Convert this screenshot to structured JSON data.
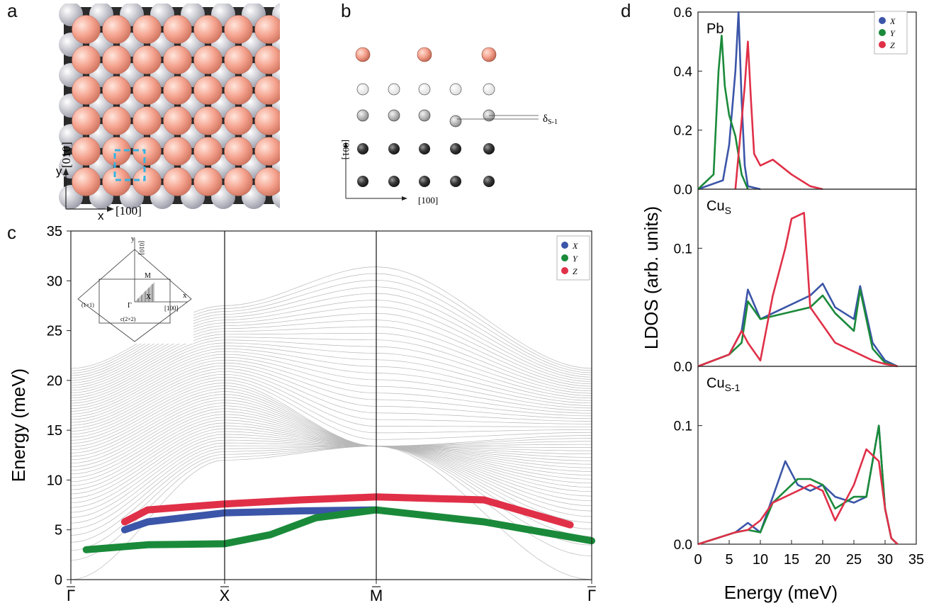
{
  "panels": {
    "a": "a",
    "b": "b",
    "c": "c",
    "d": "d"
  },
  "panel_a": {
    "ylabel": "[010]",
    "xlabel": "[100]",
    "y_axis": "y",
    "x_axis": "x",
    "colors": {
      "pb": "#f5a38f",
      "cu": "#c8c8c8",
      "dark": "#2a2a2a",
      "box": "#39b3e0"
    }
  },
  "panel_b": {
    "ylabel": "[001]",
    "xlabel": "[100]",
    "delta_label": "δ",
    "delta_sub": "S-1"
  },
  "panel_c": {
    "ylabel": "Energy (meV)",
    "yticks": [
      "0",
      "5",
      "10",
      "15",
      "20",
      "25",
      "30",
      "35"
    ],
    "xticks": [
      "Γ",
      "X",
      "M",
      "Γ"
    ],
    "legend": [
      {
        "name": "X",
        "color": "#3b55a8"
      },
      {
        "name": "Y",
        "color": "#1a8a3a"
      },
      {
        "name": "Z",
        "color": "#e03048"
      }
    ],
    "inset": {
      "y": "y",
      "y_dir": "[010]",
      "x": "x",
      "x_dir": "[100]",
      "m": "M",
      "xbar": "X",
      "gamma": "Γ",
      "cell_1x1": "(1×1)",
      "cell_c2x2": "c(2×2)"
    }
  },
  "panel_d": {
    "ylabel": "LDOS (arb. units)",
    "xlabel": "Energy (meV)",
    "xticks": [
      "0",
      "5",
      "10",
      "15",
      "20",
      "25",
      "30",
      "35"
    ],
    "subplots": [
      {
        "label": "Pb",
        "sub": "",
        "yticks": [
          "0.0",
          "0.2",
          "0.4",
          "0.6"
        ]
      },
      {
        "label": "Cu",
        "sub": "S",
        "yticks": [
          "0.0",
          "0.1"
        ]
      },
      {
        "label": "Cu",
        "sub": "S-1",
        "yticks": [
          "0.0",
          "0.1"
        ]
      }
    ],
    "legend": [
      {
        "name": "X",
        "color": "#3b55a8"
      },
      {
        "name": "Y",
        "color": "#1a8a3a"
      },
      {
        "name": "Z",
        "color": "#e03048"
      }
    ]
  },
  "chart_data": [
    {
      "type": "line",
      "panel": "c",
      "ylabel": "Energy (meV)",
      "ylim": [
        0,
        35
      ],
      "x_categories": [
        "Γ",
        "X",
        "M",
        "Γ"
      ],
      "series": [
        {
          "name": "Z",
          "x": [
            0.35,
            0.5,
            1.0,
            1.5,
            2.0,
            2.5,
            2.9
          ],
          "y": [
            5.8,
            7.0,
            7.6,
            8.0,
            8.3,
            8.0,
            5.5
          ]
        },
        {
          "name": "X",
          "x": [
            0.35,
            0.5,
            1.0,
            1.5,
            2.0
          ],
          "y": [
            5.0,
            5.8,
            6.7,
            6.9,
            7.0
          ]
        },
        {
          "name": "Y",
          "x": [
            0.1,
            0.5,
            1.0,
            1.3,
            1.6,
            2.0,
            2.5,
            3.0
          ],
          "y": [
            3.0,
            3.5,
            3.6,
            4.5,
            6.2,
            7.0,
            5.8,
            3.9
          ]
        }
      ]
    },
    {
      "type": "line",
      "panel": "d-Pb",
      "xlabel": "Energy (meV)",
      "ylabel": "LDOS (arb. units)",
      "xlim": [
        0,
        35
      ],
      "ylim": [
        0,
        0.6
      ],
      "series": [
        {
          "name": "X",
          "x": [
            0,
            4,
            5,
            6,
            6.5,
            7,
            7.5,
            8,
            10
          ],
          "y": [
            0,
            0.03,
            0.15,
            0.4,
            0.6,
            0.3,
            0.08,
            0.01,
            0
          ]
        },
        {
          "name": "Y",
          "x": [
            0,
            2.5,
            3.3,
            3.8,
            4.3,
            5,
            6,
            7,
            8
          ],
          "y": [
            0,
            0.05,
            0.4,
            0.52,
            0.35,
            0.25,
            0.18,
            0.05,
            0
          ]
        },
        {
          "name": "Z",
          "x": [
            6,
            7.5,
            8,
            8.5,
            9,
            10,
            12,
            15,
            18,
            20
          ],
          "y": [
            0,
            0.35,
            0.5,
            0.3,
            0.12,
            0.08,
            0.1,
            0.05,
            0.01,
            0
          ]
        }
      ]
    },
    {
      "type": "line",
      "panel": "d-CuS",
      "xlabel": "Energy (meV)",
      "ylabel": "LDOS (arb. units)",
      "xlim": [
        0,
        35
      ],
      "ylim": [
        0,
        0.15
      ],
      "series": [
        {
          "name": "X",
          "x": [
            0,
            5,
            7,
            8,
            10,
            14,
            18,
            20,
            22,
            25,
            26,
            28,
            30,
            32
          ],
          "y": [
            0,
            0.01,
            0.03,
            0.065,
            0.04,
            0.05,
            0.06,
            0.07,
            0.05,
            0.04,
            0.068,
            0.02,
            0.005,
            0
          ]
        },
        {
          "name": "Y",
          "x": [
            0,
            5,
            7,
            8,
            10,
            14,
            18,
            20,
            22,
            25,
            26,
            28,
            30,
            32
          ],
          "y": [
            0,
            0.01,
            0.02,
            0.055,
            0.04,
            0.045,
            0.05,
            0.06,
            0.045,
            0.03,
            0.065,
            0.015,
            0.003,
            0
          ]
        },
        {
          "name": "Z",
          "x": [
            0,
            5,
            7,
            8,
            10,
            12,
            14,
            15,
            17,
            18,
            22,
            26,
            28,
            30,
            32
          ],
          "y": [
            0,
            0.01,
            0.03,
            0.02,
            0.005,
            0.06,
            0.1,
            0.125,
            0.13,
            0.05,
            0.02,
            0.01,
            0.005,
            0.002,
            0
          ]
        }
      ]
    },
    {
      "type": "line",
      "panel": "d-CuS-1",
      "xlabel": "Energy (meV)",
      "ylabel": "LDOS (arb. units)",
      "xlim": [
        0,
        35
      ],
      "ylim": [
        0,
        0.15
      ],
      "series": [
        {
          "name": "X",
          "x": [
            0,
            6,
            8,
            10,
            12,
            14,
            16,
            18,
            20,
            22,
            25,
            27,
            29,
            30,
            31,
            32
          ],
          "y": [
            0,
            0.01,
            0.018,
            0.01,
            0.04,
            0.07,
            0.05,
            0.045,
            0.05,
            0.04,
            0.035,
            0.04,
            0.1,
            0.03,
            0.005,
            0
          ]
        },
        {
          "name": "Y",
          "x": [
            0,
            6,
            8,
            10,
            12,
            14,
            16,
            18,
            20,
            22,
            25,
            27,
            29,
            30,
            31,
            32
          ],
          "y": [
            0,
            0.01,
            0.012,
            0.01,
            0.035,
            0.045,
            0.055,
            0.055,
            0.05,
            0.03,
            0.04,
            0.04,
            0.1,
            0.03,
            0.005,
            0
          ]
        },
        {
          "name": "Z",
          "x": [
            0,
            6,
            8,
            10,
            12,
            14,
            16,
            18,
            20,
            22,
            25,
            27,
            29,
            30,
            31,
            32
          ],
          "y": [
            0,
            0.01,
            0.012,
            0.02,
            0.035,
            0.04,
            0.045,
            0.05,
            0.045,
            0.02,
            0.05,
            0.08,
            0.07,
            0.03,
            0.005,
            0
          ]
        }
      ]
    }
  ]
}
